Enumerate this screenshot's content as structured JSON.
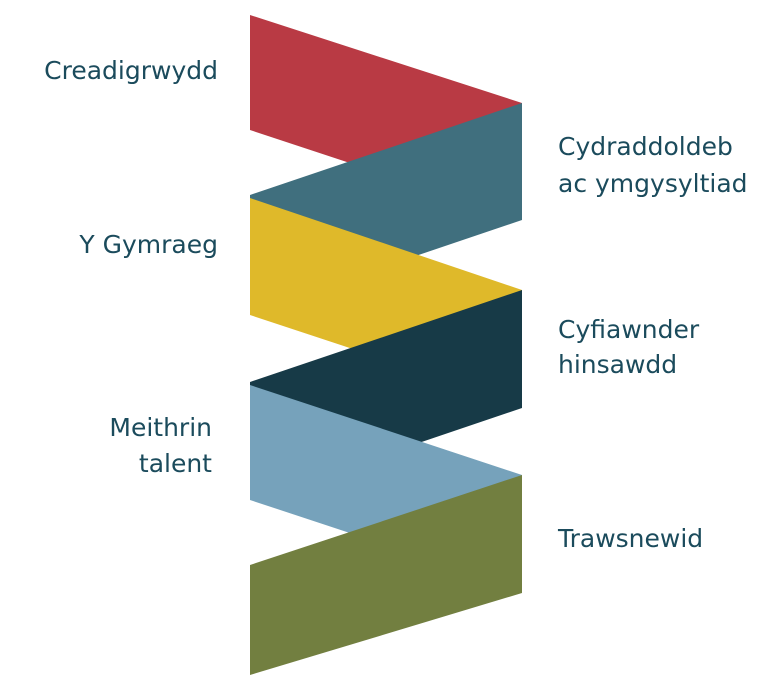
{
  "items": [
    {
      "lines": [
        "Creadigrwydd"
      ]
    },
    {
      "lines": [
        "Cydraddoldeb",
        "ac ymgysyltiad"
      ]
    },
    {
      "lines": [
        "Y Gymraeg"
      ]
    },
    {
      "lines": [
        "Cyfiawnder",
        "hinsawdd"
      ]
    },
    {
      "lines": [
        "Meithrin",
        "talent"
      ]
    },
    {
      "lines": [
        "Trawsnewid"
      ]
    }
  ]
}
